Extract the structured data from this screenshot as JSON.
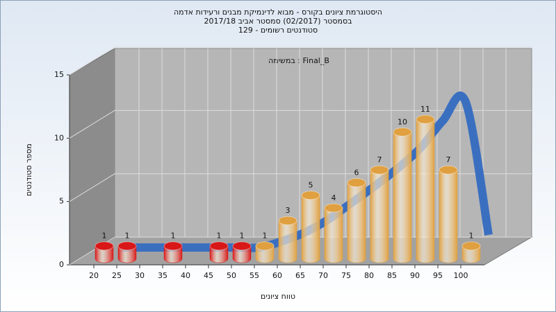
{
  "chart_data": {
    "type": "bar",
    "title": "היסטוגרמת ציונים בקורס - מבוא לדינמיקת מבנים ורעידות אדמה",
    "subtitle": [
      "בסמסטר  (02/2017)  סמסטר אביב 2017/18",
      "סטודנטים רשומים - 129"
    ],
    "annotation": "במשימה : Final_B",
    "y_label": "מספר סטודנטים",
    "x_label": "טווח ציונים",
    "categories": [
      "20",
      "25",
      "30",
      "35",
      "40",
      "45",
      "50",
      "55",
      "60",
      "65",
      "70",
      "75",
      "80",
      "85",
      "90",
      "95",
      "100"
    ],
    "values": [
      1,
      1,
      0,
      1,
      0,
      1,
      1,
      1,
      3,
      5,
      4,
      6,
      7,
      10,
      11,
      7,
      1
    ],
    "colors": [
      "#d81818",
      "#d81818",
      "#d81818",
      "#d81818",
      "#d81818",
      "#d81818",
      "#d81818",
      "#e0a040",
      "#e0a040",
      "#e0a040",
      "#e0a040",
      "#e0a040",
      "#e0a040",
      "#e0a040",
      "#e0a040",
      "#e0a040",
      "#e0a040"
    ],
    "curve": {
      "type": "line",
      "color": "#3a6fc0",
      "values": [
        0,
        0,
        0,
        0,
        0,
        0,
        0,
        0.5,
        1.2,
        2.2,
        3.5,
        4.8,
        6.2,
        7.8,
        10,
        11.5,
        1
      ]
    },
    "ylim": [
      0,
      15
    ],
    "yticks": [
      0,
      5,
      10,
      15
    ],
    "grid": true
  }
}
